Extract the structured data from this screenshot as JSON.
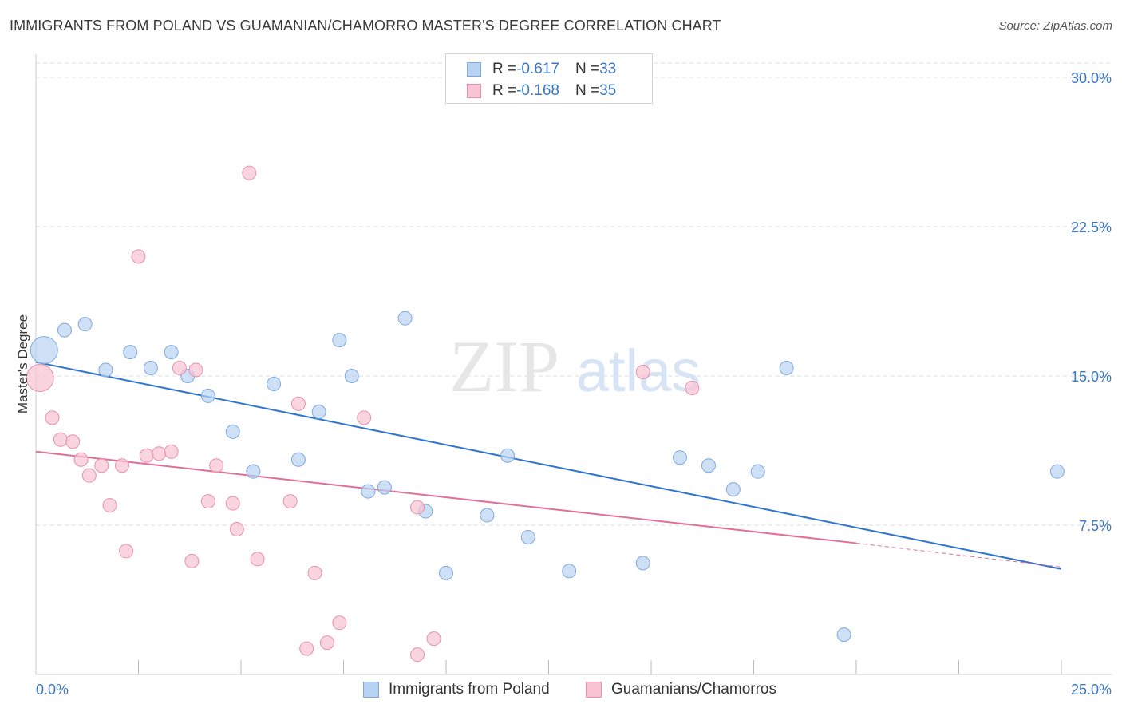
{
  "title": "IMMIGRANTS FROM POLAND VS GUAMANIAN/CHAMORRO MASTER'S DEGREE CORRELATION CHART",
  "source": "Source: ZipAtlas.com",
  "watermark": {
    "part1": "ZIP",
    "part2": "atlas"
  },
  "legend": {
    "rows": [
      {
        "r_label": "R = ",
        "r_value": "-0.617",
        "n_label": "N = ",
        "n_value": "33"
      },
      {
        "r_label": "R = ",
        "r_value": "-0.168",
        "n_label": "N = ",
        "n_value": "35"
      }
    ]
  },
  "bottom_legend": {
    "series1": "Immigrants from Poland",
    "series2": "Guamanians/Chamorros"
  },
  "colors": {
    "blue_fill": "#b8d3f2",
    "blue_stroke": "#7fa9dc",
    "blue_line": "#2f74d0",
    "pink_fill": "#f8c3d3",
    "pink_stroke": "#e890ae",
    "pink_line": "#e0709a",
    "grid": "#dddddd",
    "axis_label": "#3b78c4"
  },
  "chart_data": {
    "type": "scatter",
    "title": "IMMIGRANTS FROM POLAND VS GUAMANIAN/CHAMORRO MASTER'S DEGREE CORRELATION CHART",
    "xlabel": "",
    "ylabel": "Master's Degree",
    "xlim": [
      0,
      25
    ],
    "ylim": [
      0,
      30
    ],
    "x_tick_labels": [
      "0.0%",
      "25.0%"
    ],
    "y_ticks": [
      7.5,
      15.0,
      22.5,
      30.0
    ],
    "y_tick_labels": [
      "7.5%",
      "15.0%",
      "22.5%",
      "30.0%"
    ],
    "series": [
      {
        "name": "Immigrants from Poland",
        "color": "#b8d3f2",
        "trendline": {
          "x0": 0,
          "y0": 15.7,
          "x1": 25,
          "y1": 5.3,
          "dashed_from": null
        },
        "points": [
          {
            "x": 0.2,
            "y": 16.3,
            "big": true
          },
          {
            "x": 0.7,
            "y": 17.3
          },
          {
            "x": 1.2,
            "y": 17.6
          },
          {
            "x": 1.7,
            "y": 15.3
          },
          {
            "x": 2.3,
            "y": 16.2
          },
          {
            "x": 2.8,
            "y": 15.4
          },
          {
            "x": 3.3,
            "y": 16.2
          },
          {
            "x": 3.7,
            "y": 15.0
          },
          {
            "x": 4.2,
            "y": 14.0
          },
          {
            "x": 4.8,
            "y": 12.2
          },
          {
            "x": 5.3,
            "y": 10.2
          },
          {
            "x": 5.8,
            "y": 14.6
          },
          {
            "x": 6.4,
            "y": 10.8
          },
          {
            "x": 6.9,
            "y": 13.2
          },
          {
            "x": 7.4,
            "y": 16.8
          },
          {
            "x": 7.7,
            "y": 15.0
          },
          {
            "x": 8.1,
            "y": 9.2
          },
          {
            "x": 8.5,
            "y": 9.4
          },
          {
            "x": 9.0,
            "y": 17.9
          },
          {
            "x": 9.5,
            "y": 8.2
          },
          {
            "x": 10.0,
            "y": 5.1
          },
          {
            "x": 11.0,
            "y": 8.0
          },
          {
            "x": 11.5,
            "y": 11.0
          },
          {
            "x": 12.0,
            "y": 6.9
          },
          {
            "x": 13.0,
            "y": 5.2
          },
          {
            "x": 14.8,
            "y": 5.6
          },
          {
            "x": 15.7,
            "y": 10.9
          },
          {
            "x": 16.4,
            "y": 10.5
          },
          {
            "x": 17.0,
            "y": 9.3
          },
          {
            "x": 17.6,
            "y": 10.2
          },
          {
            "x": 18.3,
            "y": 15.4
          },
          {
            "x": 19.7,
            "y": 2.0
          },
          {
            "x": 24.9,
            "y": 10.2
          }
        ]
      },
      {
        "name": "Guamanians/Chamorros",
        "color": "#f8c3d3",
        "trendline": {
          "x0": 0,
          "y0": 11.2,
          "x1": 20,
          "y1": 6.6,
          "dashed_to": 25,
          "dashed_y": 5.4
        },
        "points": [
          {
            "x": 0.1,
            "y": 14.9,
            "big": true
          },
          {
            "x": 0.4,
            "y": 12.9
          },
          {
            "x": 0.6,
            "y": 11.8
          },
          {
            "x": 0.9,
            "y": 11.7
          },
          {
            "x": 1.1,
            "y": 10.8
          },
          {
            "x": 1.3,
            "y": 10.0
          },
          {
            "x": 1.6,
            "y": 10.5
          },
          {
            "x": 1.8,
            "y": 8.5
          },
          {
            "x": 2.1,
            "y": 10.5
          },
          {
            "x": 2.2,
            "y": 6.2
          },
          {
            "x": 2.5,
            "y": 21.0
          },
          {
            "x": 2.7,
            "y": 11.0
          },
          {
            "x": 3.0,
            "y": 11.1
          },
          {
            "x": 3.3,
            "y": 11.2
          },
          {
            "x": 3.5,
            "y": 15.4
          },
          {
            "x": 3.8,
            "y": 5.7
          },
          {
            "x": 3.9,
            "y": 15.3
          },
          {
            "x": 4.2,
            "y": 8.7
          },
          {
            "x": 4.4,
            "y": 10.5
          },
          {
            "x": 4.8,
            "y": 8.6
          },
          {
            "x": 4.9,
            "y": 7.3
          },
          {
            "x": 5.2,
            "y": 25.2
          },
          {
            "x": 5.4,
            "y": 5.8
          },
          {
            "x": 6.2,
            "y": 8.7
          },
          {
            "x": 6.4,
            "y": 13.6
          },
          {
            "x": 6.6,
            "y": 1.3
          },
          {
            "x": 6.8,
            "y": 5.1
          },
          {
            "x": 7.1,
            "y": 1.6
          },
          {
            "x": 7.4,
            "y": 2.6
          },
          {
            "x": 8.0,
            "y": 12.9
          },
          {
            "x": 9.3,
            "y": 8.4
          },
          {
            "x": 9.3,
            "y": 1.0
          },
          {
            "x": 9.7,
            "y": 1.8
          },
          {
            "x": 14.8,
            "y": 15.2
          },
          {
            "x": 16.0,
            "y": 14.4
          }
        ]
      }
    ]
  }
}
